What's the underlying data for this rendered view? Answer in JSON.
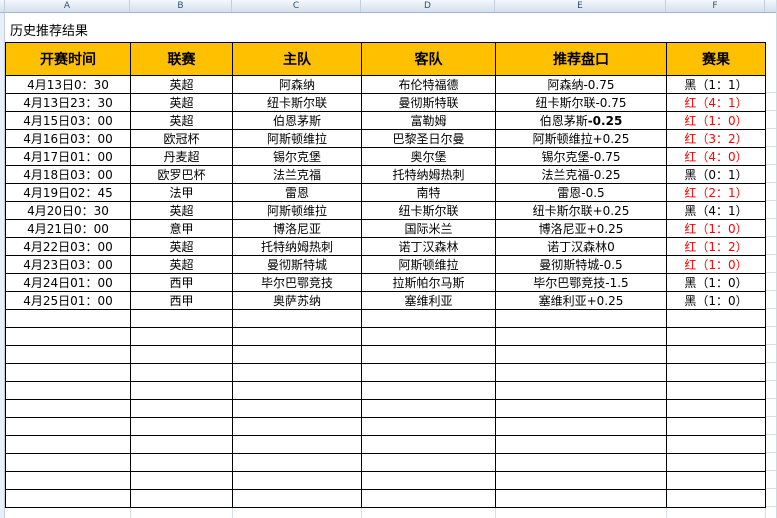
{
  "spreadsheet": {
    "column_letters": [
      "A",
      "B",
      "C",
      "D",
      "E",
      "F"
    ],
    "title": "历史推荐结果"
  },
  "colors": {
    "table_header_bg": "#FFC000",
    "win_red": "#FF0000",
    "loss_black": "#000000",
    "grid_faint": "#D6DEE8"
  },
  "table": {
    "headers": [
      "开赛时间",
      "联赛",
      "主队",
      "客队",
      "推荐盘口",
      "赛果"
    ],
    "rows": [
      {
        "time": "4月13日0：30",
        "league": "英超",
        "home": "阿森纳",
        "away": "布伦特福德",
        "handicap": "阿森纳-0.75",
        "result": "黑（1：1）",
        "result_color": "black"
      },
      {
        "time": "4月13日23：30",
        "league": "英超",
        "home": "纽卡斯尔联",
        "away": "曼彻斯特联",
        "handicap": "纽卡斯尔联-0.75",
        "result": "红（4：1）",
        "result_color": "red"
      },
      {
        "time": "4月15日03：00",
        "league": "英超",
        "home": "伯恩茅斯",
        "away": "富勒姆",
        "handicap": "伯恩茅斯-0.25",
        "handicap_parts": {
          "normal": "伯恩茅斯",
          "bold": "-0.25"
        },
        "result": "红（1：0）",
        "result_color": "red"
      },
      {
        "time": "4月16日03：00",
        "league": "欧冠杯",
        "home": "阿斯顿维拉",
        "away": "巴黎圣日尔曼",
        "handicap": "阿斯顿维拉+0.25",
        "result": "红（3：2）",
        "result_color": "red"
      },
      {
        "time": "4月17日01：00",
        "league": "丹麦超",
        "home": "锡尔克堡",
        "away": "奥尔堡",
        "handicap": "锡尔克堡-0.75",
        "result": "红（4：0）",
        "result_color": "red"
      },
      {
        "time": "4月18日03：00",
        "league": "欧罗巴杯",
        "home": "法兰克福",
        "away": "托特纳姆热刺",
        "handicap": "法兰克福-0.25",
        "result": "黑（0：1）",
        "result_color": "black"
      },
      {
        "time": "4月19日02：45",
        "league": "法甲",
        "home": "雷恩",
        "away": "南特",
        "handicap": "雷恩-0.5",
        "result": "红（2：1）",
        "result_color": "red"
      },
      {
        "time": "4月20日0：30",
        "league": "英超",
        "home": "阿斯顿维拉",
        "away": "纽卡斯尔联",
        "handicap": "纽卡斯尔联+0.25",
        "result": "黑（4：1）",
        "result_color": "black"
      },
      {
        "time": "4月21日0：00",
        "league": "意甲",
        "home": "博洛尼亚",
        "away": "国际米兰",
        "handicap": "博洛尼亚+0.25",
        "result": "红（1：0）",
        "result_color": "red"
      },
      {
        "time": "4月22日03：00",
        "league": "英超",
        "home": "托特纳姆热刺",
        "away": "诺丁汉森林",
        "handicap": "诺丁汉森林0",
        "result": "红（1：2）",
        "result_color": "red"
      },
      {
        "time": "4月23日03：00",
        "league": "英超",
        "home": "曼彻斯特城",
        "away": "阿斯顿维拉",
        "handicap": "曼彻斯特城-0.5",
        "result": "红（1：0）",
        "result_color": "red"
      },
      {
        "time": "4月24日01：00",
        "league": "西甲",
        "home": "毕尔巴鄂竞技",
        "away": "拉斯帕尔马斯",
        "handicap": "毕尔巴鄂竞技-1.5",
        "result": "黑（1：0）",
        "result_color": "black"
      },
      {
        "time": "4月25日01：00",
        "league": "西甲",
        "home": "奥萨苏纳",
        "away": "塞维利亚",
        "handicap": "塞维利亚+0.25",
        "result": "黑（1：0）",
        "result_color": "black"
      }
    ],
    "empty_row_count": 11
  }
}
